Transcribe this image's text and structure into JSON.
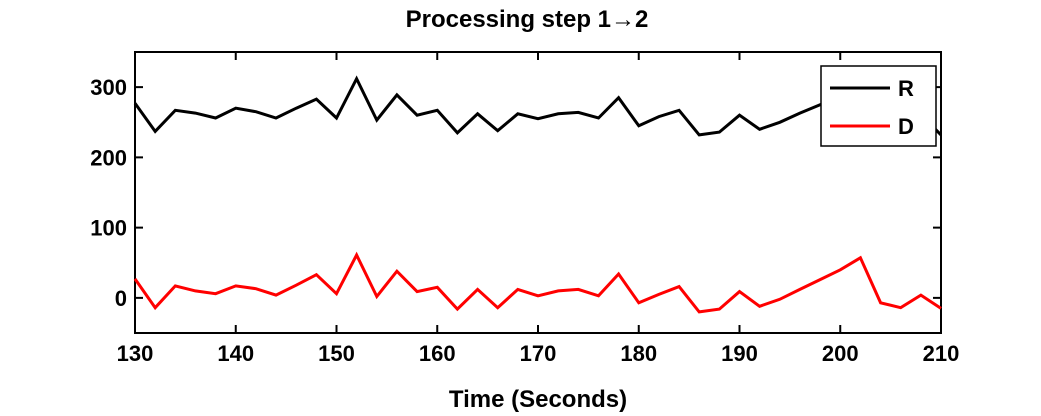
{
  "chart_data": {
    "type": "line",
    "title": "Processing step 1→2",
    "xlabel": "Time (Seconds)",
    "ylabel": "",
    "xlim": [
      130,
      210
    ],
    "ylim": [
      -50,
      350
    ],
    "xticks": [
      "130",
      "140",
      "150",
      "160",
      "170",
      "180",
      "190",
      "200",
      "210"
    ],
    "yticks": [
      "0",
      "100",
      "200",
      "300"
    ],
    "grid": false,
    "legend_position": "top-right",
    "series": [
      {
        "name": "R",
        "color": "#000000",
        "x": [
          130,
          132,
          134,
          136,
          138,
          140,
          142,
          144,
          146,
          148,
          150,
          152,
          154,
          156,
          158,
          160,
          162,
          164,
          166,
          168,
          170,
          172,
          174,
          176,
          178,
          180,
          182,
          184,
          186,
          188,
          190,
          192,
          194,
          196,
          198,
          200,
          202,
          204,
          206,
          208,
          210
        ],
        "y": [
          277,
          237,
          267,
          263,
          256,
          270,
          265,
          256,
          270,
          283,
          256,
          312,
          253,
          289,
          260,
          267,
          235,
          262,
          238,
          262,
          255,
          262,
          264,
          256,
          285,
          245,
          258,
          267,
          232,
          236,
          260,
          240,
          250,
          263,
          275,
          287,
          298,
          291,
          279,
          261,
          232
        ]
      },
      {
        "name": "D",
        "color": "#ff0000",
        "x": [
          130,
          132,
          134,
          136,
          138,
          140,
          142,
          144,
          146,
          148,
          150,
          152,
          154,
          156,
          158,
          160,
          162,
          164,
          166,
          168,
          170,
          172,
          174,
          176,
          178,
          180,
          182,
          184,
          186,
          188,
          190,
          192,
          194,
          196,
          198,
          200,
          202,
          204,
          206,
          208,
          210
        ],
        "y": [
          27,
          -14,
          17,
          10,
          6,
          17,
          13,
          4,
          18,
          33,
          6,
          61,
          2,
          38,
          9,
          15,
          -16,
          12,
          -14,
          12,
          3,
          10,
          12,
          3,
          34,
          -7,
          5,
          16,
          -20,
          -16,
          9,
          -12,
          -2,
          12,
          26,
          40,
          57,
          -7,
          -14,
          4,
          -15
        ]
      }
    ]
  }
}
